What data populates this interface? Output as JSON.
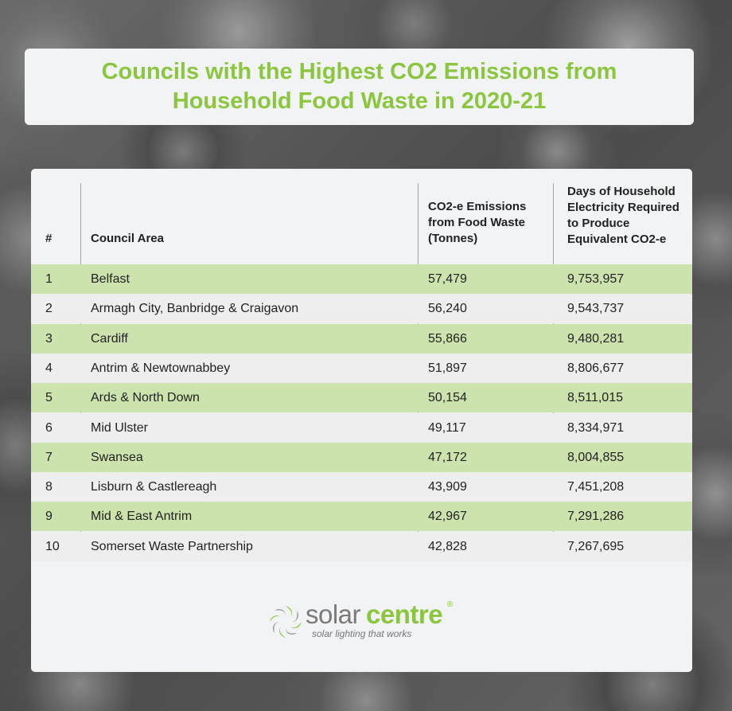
{
  "title": "Councils with the Highest CO2 Emissions from Household Food Waste in 2020-21",
  "table": {
    "headers": {
      "rank": "#",
      "council": "Council Area",
      "emissions": "CO2-e Emissions from Food Waste (Tonnes)",
      "days": "Days of Household Electricity Required to Produce Equivalent CO2-e"
    },
    "rows": [
      {
        "rank": "1",
        "council": "Belfast",
        "emissions": "57,479",
        "days": "9,753,957"
      },
      {
        "rank": "2",
        "council": "Armagh City, Banbridge & Craigavon",
        "emissions": "56,240",
        "days": "9,543,737"
      },
      {
        "rank": "3",
        "council": "Cardiff",
        "emissions": "55,866",
        "days": "9,480,281"
      },
      {
        "rank": "4",
        "council": "Antrim & Newtownabbey",
        "emissions": "51,897",
        "days": "8,806,677"
      },
      {
        "rank": "5",
        "council": "Ards & North Down",
        "emissions": "50,154",
        "days": "8,511,015"
      },
      {
        "rank": "6",
        "council": "Mid Ulster",
        "emissions": "49,117",
        "days": "8,334,971"
      },
      {
        "rank": "7",
        "council": "Swansea",
        "emissions": "47,172",
        "days": "8,004,855"
      },
      {
        "rank": "8",
        "council": "Lisburn & Castlereagh",
        "emissions": "43,909",
        "days": "7,451,208"
      },
      {
        "rank": "9",
        "council": "Mid & East Antrim",
        "emissions": "42,967",
        "days": "7,291,286"
      },
      {
        "rank": "10",
        "council": "Somerset Waste Partnership",
        "emissions": "42,828",
        "days": "7,267,695"
      }
    ]
  },
  "logo": {
    "solar": "solar",
    "centre": "centre",
    "registered": "®",
    "tagline": "solar lighting that works",
    "icon": "sun-swirl-icon"
  },
  "colors": {
    "accent": "#8cc63f",
    "row_highlight": "#cde3ad",
    "row_plain": "#eeeeee",
    "card": "#f2f3f5"
  }
}
